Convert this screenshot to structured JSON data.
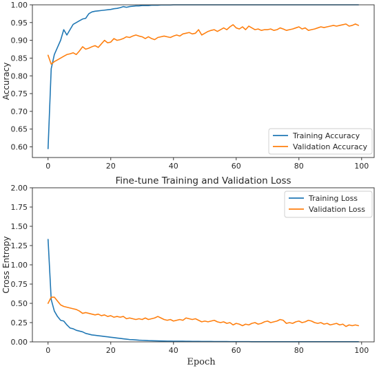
{
  "chart_data": [
    {
      "type": "line",
      "title": "",
      "xlabel": "",
      "ylabel": "Accuracy",
      "xlim": [
        -5,
        104
      ],
      "ylim": [
        0.57,
        1.0
      ],
      "xticks": [
        0,
        20,
        40,
        60,
        80,
        100
      ],
      "yticks": [
        0.6,
        0.65,
        0.7,
        0.75,
        0.8,
        0.85,
        0.9,
        0.95,
        1.0
      ],
      "ytick_labels": [
        "0.60",
        "0.65",
        "0.70",
        "0.75",
        "0.80",
        "0.85",
        "0.90",
        "0.95",
        "1.00"
      ],
      "legend_position": "lower-right",
      "grid": false,
      "series": [
        {
          "name": "Training Accuracy",
          "color": "#1f77b4",
          "values": [
            0.595,
            0.82,
            0.86,
            0.88,
            0.9,
            0.93,
            0.915,
            0.93,
            0.945,
            0.95,
            0.955,
            0.96,
            0.962,
            0.975,
            0.98,
            0.982,
            0.983,
            0.984,
            0.985,
            0.986,
            0.987,
            0.989,
            0.99,
            0.992,
            0.995,
            0.993,
            0.995,
            0.996,
            0.997,
            0.997,
            0.998,
            0.998,
            0.998,
            0.999,
            0.999,
            0.999,
            0.9995,
            0.9995,
            0.9995,
            0.9995,
            1.0,
            1.0,
            1.0,
            1.0,
            1.0,
            1.0,
            1.0,
            1.0,
            1.0,
            1.0,
            1.0,
            1.0,
            1.0,
            1.0,
            1.0,
            1.0,
            1.0,
            1.0,
            1.0,
            1.0,
            1.0,
            1.0,
            1.0,
            1.0,
            1.0,
            1.0,
            1.0,
            1.0,
            1.0,
            1.0,
            1.0,
            1.0,
            1.0,
            1.0,
            1.0,
            1.0,
            1.0,
            1.0,
            1.0,
            1.0,
            1.0,
            1.0,
            1.0,
            1.0,
            1.0,
            1.0,
            1.0,
            1.0,
            1.0,
            1.0,
            1.0,
            1.0,
            1.0,
            1.0,
            1.0,
            1.0,
            1.0,
            1.0,
            1.0,
            1.0
          ]
        },
        {
          "name": "Validation Accuracy",
          "color": "#ff7f0e",
          "values": [
            0.858,
            0.833,
            0.84,
            0.845,
            0.85,
            0.855,
            0.86,
            0.862,
            0.865,
            0.86,
            0.87,
            0.882,
            0.875,
            0.878,
            0.882,
            0.885,
            0.88,
            0.89,
            0.9,
            0.893,
            0.895,
            0.905,
            0.9,
            0.902,
            0.905,
            0.91,
            0.908,
            0.912,
            0.915,
            0.912,
            0.91,
            0.905,
            0.91,
            0.905,
            0.902,
            0.908,
            0.91,
            0.912,
            0.91,
            0.908,
            0.912,
            0.915,
            0.912,
            0.918,
            0.92,
            0.922,
            0.918,
            0.92,
            0.93,
            0.915,
            0.92,
            0.925,
            0.928,
            0.93,
            0.925,
            0.93,
            0.935,
            0.93,
            0.938,
            0.944,
            0.935,
            0.932,
            0.938,
            0.93,
            0.94,
            0.935,
            0.93,
            0.932,
            0.928,
            0.93,
            0.93,
            0.932,
            0.928,
            0.93,
            0.935,
            0.932,
            0.928,
            0.93,
            0.932,
            0.935,
            0.938,
            0.932,
            0.935,
            0.928,
            0.93,
            0.932,
            0.935,
            0.938,
            0.936,
            0.938,
            0.94,
            0.942,
            0.94,
            0.942,
            0.944,
            0.946,
            0.94,
            0.942,
            0.946,
            0.942
          ]
        }
      ]
    },
    {
      "type": "line",
      "title": "Fine-tune Training and Validation Loss",
      "xlabel": "Epoch",
      "ylabel": "Cross Entropy",
      "xlim": [
        -5,
        104
      ],
      "ylim": [
        0.0,
        2.0
      ],
      "xticks": [
        0,
        20,
        40,
        60,
        80,
        100
      ],
      "yticks": [
        0.0,
        0.25,
        0.5,
        0.75,
        1.0,
        1.25,
        1.5,
        1.75,
        2.0
      ],
      "ytick_labels": [
        "0.00",
        "0.25",
        "0.50",
        "0.75",
        "1.00",
        "1.25",
        "1.50",
        "1.75",
        "2.00"
      ],
      "legend_position": "upper-right",
      "grid": false,
      "series": [
        {
          "name": "Training Loss",
          "color": "#1f77b4",
          "values": [
            1.33,
            0.55,
            0.4,
            0.33,
            0.28,
            0.27,
            0.22,
            0.18,
            0.17,
            0.15,
            0.14,
            0.13,
            0.11,
            0.1,
            0.09,
            0.085,
            0.08,
            0.075,
            0.07,
            0.065,
            0.06,
            0.055,
            0.05,
            0.045,
            0.04,
            0.035,
            0.03,
            0.028,
            0.025,
            0.022,
            0.02,
            0.018,
            0.016,
            0.015,
            0.014,
            0.013,
            0.012,
            0.011,
            0.01,
            0.01,
            0.009,
            0.009,
            0.008,
            0.008,
            0.007,
            0.007,
            0.006,
            0.006,
            0.006,
            0.005,
            0.005,
            0.005,
            0.005,
            0.004,
            0.004,
            0.004,
            0.004,
            0.004,
            0.003,
            0.003,
            0.003,
            0.003,
            0.003,
            0.003,
            0.003,
            0.002,
            0.002,
            0.002,
            0.002,
            0.002,
            0.002,
            0.002,
            0.002,
            0.002,
            0.002,
            0.002,
            0.002,
            0.002,
            0.002,
            0.002,
            0.002,
            0.002,
            0.002,
            0.002,
            0.002,
            0.002,
            0.002,
            0.002,
            0.002,
            0.002,
            0.002,
            0.002,
            0.002,
            0.002,
            0.002,
            0.002,
            0.002,
            0.002,
            0.002,
            0.002
          ]
        },
        {
          "name": "Validation Loss",
          "color": "#ff7f0e",
          "values": [
            0.5,
            0.58,
            0.58,
            0.53,
            0.48,
            0.46,
            0.45,
            0.44,
            0.43,
            0.42,
            0.4,
            0.37,
            0.38,
            0.37,
            0.36,
            0.35,
            0.36,
            0.34,
            0.35,
            0.33,
            0.34,
            0.32,
            0.33,
            0.32,
            0.33,
            0.3,
            0.31,
            0.3,
            0.29,
            0.3,
            0.29,
            0.31,
            0.29,
            0.3,
            0.31,
            0.33,
            0.31,
            0.29,
            0.28,
            0.29,
            0.27,
            0.28,
            0.29,
            0.28,
            0.31,
            0.3,
            0.29,
            0.3,
            0.28,
            0.26,
            0.27,
            0.26,
            0.27,
            0.28,
            0.26,
            0.25,
            0.26,
            0.24,
            0.25,
            0.22,
            0.24,
            0.23,
            0.21,
            0.23,
            0.22,
            0.24,
            0.25,
            0.23,
            0.24,
            0.26,
            0.27,
            0.25,
            0.26,
            0.27,
            0.29,
            0.28,
            0.24,
            0.25,
            0.24,
            0.26,
            0.27,
            0.25,
            0.26,
            0.28,
            0.27,
            0.25,
            0.24,
            0.25,
            0.23,
            0.24,
            0.22,
            0.23,
            0.24,
            0.22,
            0.23,
            0.2,
            0.22,
            0.21,
            0.22,
            0.21
          ]
        }
      ]
    }
  ]
}
